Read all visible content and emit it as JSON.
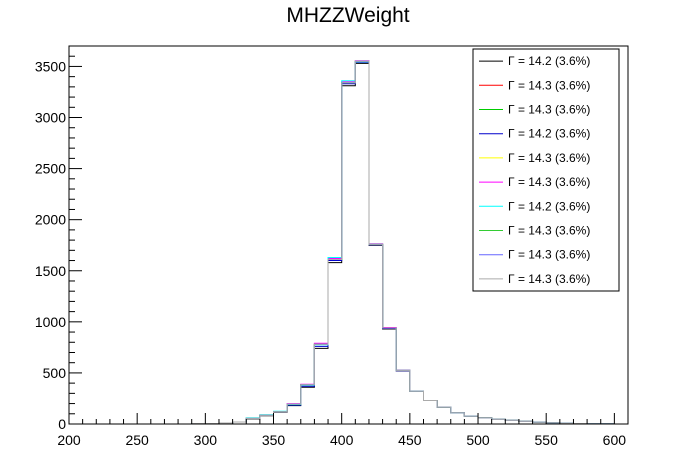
{
  "chart_data": {
    "type": "histogram",
    "title": "MHZZWeight",
    "xlabel": "",
    "ylabel": "",
    "xlim": [
      200,
      610
    ],
    "ylim": [
      0,
      3700
    ],
    "x_ticks": [
      200,
      250,
      300,
      350,
      400,
      450,
      500,
      550,
      600
    ],
    "y_ticks": [
      0,
      500,
      1000,
      1500,
      2000,
      2500,
      3000,
      3500
    ],
    "bin_edges": [
      200,
      210,
      220,
      230,
      240,
      250,
      260,
      270,
      280,
      290,
      300,
      310,
      320,
      330,
      340,
      350,
      360,
      370,
      380,
      390,
      400,
      410,
      420,
      430,
      440,
      450,
      460,
      470,
      480,
      490,
      500,
      510,
      520,
      530,
      540,
      550,
      560,
      570,
      580,
      590,
      600
    ],
    "grid": false,
    "legend_position": "top-right",
    "series": [
      {
        "label": "Γ = 14.2 (3.6%)",
        "color": "#000000",
        "values": [
          0,
          0,
          0,
          0,
          0,
          0,
          0,
          0,
          0,
          5,
          5,
          10,
          20,
          50,
          80,
          115,
          180,
          360,
          740,
          1580,
          3310,
          3530,
          1750,
          930,
          520,
          320,
          230,
          165,
          110,
          75,
          60,
          45,
          35,
          25,
          18,
          12,
          8,
          5,
          3,
          2
        ]
      },
      {
        "label": "Γ = 14.3 (3.6%)",
        "color": "#ff0000",
        "values": [
          0,
          0,
          0,
          0,
          0,
          0,
          0,
          0,
          0,
          5,
          5,
          10,
          20,
          55,
          85,
          120,
          195,
          385,
          780,
          1610,
          3340,
          3550,
          1760,
          940,
          525,
          320,
          230,
          165,
          110,
          75,
          60,
          45,
          35,
          25,
          18,
          12,
          8,
          5,
          3,
          2
        ]
      },
      {
        "label": "Γ = 14.3 (3.6%)",
        "color": "#00cc00",
        "values": [
          0,
          0,
          0,
          0,
          0,
          0,
          0,
          0,
          0,
          5,
          5,
          10,
          20,
          55,
          85,
          120,
          195,
          385,
          780,
          1610,
          3340,
          3550,
          1760,
          940,
          525,
          320,
          230,
          165,
          110,
          75,
          60,
          45,
          35,
          25,
          18,
          12,
          8,
          5,
          3,
          2
        ]
      },
      {
        "label": "Γ = 14.2 (3.6%)",
        "color": "#0000cc",
        "values": [
          0,
          0,
          0,
          0,
          0,
          0,
          0,
          0,
          0,
          5,
          5,
          10,
          20,
          55,
          85,
          120,
          185,
          370,
          760,
          1600,
          3330,
          3540,
          1755,
          935,
          522,
          320,
          230,
          165,
          110,
          75,
          60,
          45,
          35,
          25,
          18,
          12,
          8,
          5,
          3,
          2
        ]
      },
      {
        "label": "Γ = 14.3 (3.6%)",
        "color": "#ffff00",
        "values": [
          0,
          0,
          0,
          0,
          0,
          0,
          0,
          0,
          0,
          5,
          5,
          10,
          20,
          55,
          85,
          120,
          195,
          385,
          780,
          1610,
          3340,
          3550,
          1760,
          940,
          525,
          320,
          230,
          165,
          110,
          75,
          60,
          45,
          35,
          25,
          18,
          12,
          8,
          5,
          3,
          2
        ]
      },
      {
        "label": "Γ = 14.3 (3.6%)",
        "color": "#ff00ff",
        "values": [
          0,
          0,
          0,
          0,
          0,
          0,
          0,
          0,
          0,
          5,
          5,
          10,
          20,
          55,
          85,
          120,
          200,
          390,
          790,
          1620,
          3350,
          3555,
          1765,
          945,
          528,
          320,
          230,
          165,
          110,
          75,
          60,
          45,
          35,
          25,
          18,
          12,
          8,
          5,
          3,
          2
        ]
      },
      {
        "label": "Γ = 14.2 (3.6%)",
        "color": "#00ffff",
        "values": [
          0,
          0,
          0,
          0,
          0,
          0,
          0,
          0,
          0,
          5,
          5,
          10,
          20,
          60,
          90,
          125,
          190,
          380,
          775,
          1630,
          3360,
          3545,
          1760,
          940,
          525,
          320,
          230,
          165,
          110,
          75,
          60,
          45,
          35,
          25,
          18,
          12,
          8,
          5,
          3,
          2
        ]
      },
      {
        "label": "Γ = 14.3 (3.6%)",
        "color": "#33cc33",
        "values": [
          0,
          0,
          0,
          0,
          0,
          0,
          0,
          0,
          0,
          5,
          5,
          10,
          20,
          55,
          85,
          120,
          195,
          385,
          780,
          1610,
          3340,
          3550,
          1760,
          940,
          525,
          320,
          230,
          165,
          110,
          75,
          60,
          45,
          35,
          25,
          18,
          12,
          8,
          5,
          3,
          2
        ]
      },
      {
        "label": "Γ = 14.3 (3.6%)",
        "color": "#6666ff",
        "values": [
          0,
          0,
          0,
          0,
          0,
          0,
          0,
          0,
          0,
          5,
          5,
          10,
          20,
          55,
          85,
          120,
          195,
          385,
          780,
          1610,
          3340,
          3550,
          1760,
          940,
          525,
          320,
          230,
          165,
          110,
          75,
          60,
          45,
          35,
          25,
          18,
          12,
          8,
          5,
          3,
          2
        ]
      },
      {
        "label": "Γ = 14.3 (3.6%)",
        "color": "#aaaaaa",
        "values": [
          0,
          0,
          0,
          0,
          0,
          0,
          0,
          0,
          0,
          5,
          5,
          10,
          20,
          55,
          85,
          120,
          195,
          385,
          780,
          1610,
          3340,
          3550,
          1760,
          940,
          525,
          320,
          230,
          165,
          110,
          75,
          60,
          45,
          35,
          25,
          18,
          12,
          8,
          5,
          3,
          2
        ]
      }
    ]
  }
}
